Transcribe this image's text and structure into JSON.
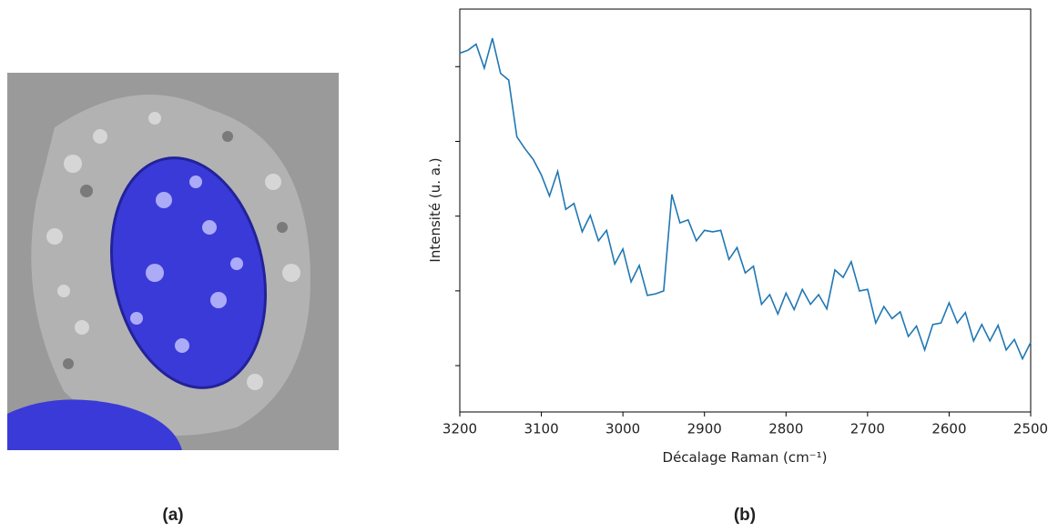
{
  "figure": {
    "labels": [
      "(a)",
      "(b)"
    ]
  },
  "chart_data": {
    "type": "line",
    "xlabel": "Décalage Raman (cm⁻¹)",
    "ylabel": "Intensité (u. a.)",
    "x": [
      3200,
      3190,
      3180,
      3170,
      3160,
      3150,
      3140,
      3130,
      3120,
      3110,
      3100,
      3090,
      3080,
      3070,
      3060,
      3050,
      3040,
      3030,
      3020,
      3010,
      3000,
      2990,
      2980,
      2970,
      2960,
      2950,
      2940,
      2930,
      2920,
      2910,
      2900,
      2890,
      2880,
      2870,
      2860,
      2850,
      2840,
      2830,
      2820,
      2810,
      2800,
      2790,
      2780,
      2770,
      2760,
      2750,
      2740,
      2730,
      2720,
      2710,
      2700,
      2690,
      2680,
      2670,
      2660,
      2650,
      2640,
      2630,
      2620,
      2610,
      2600,
      2590,
      2580,
      2570,
      2560,
      2550,
      2540,
      2530,
      2520,
      2510,
      2500
    ],
    "series": [
      {
        "color": "#1f77b4",
        "values": [
          5.18,
          5.22,
          5.3,
          4.98,
          5.38,
          4.91,
          4.82,
          4.06,
          3.9,
          3.76,
          3.55,
          3.27,
          3.6,
          3.09,
          3.17,
          2.79,
          3.01,
          2.67,
          2.81,
          2.36,
          2.56,
          2.12,
          2.34,
          1.94,
          1.96,
          2.0,
          3.29,
          2.91,
          2.95,
          2.67,
          2.81,
          2.79,
          2.81,
          2.42,
          2.58,
          2.24,
          2.33,
          1.82,
          1.95,
          1.69,
          1.97,
          1.75,
          2.02,
          1.82,
          1.95,
          1.76,
          2.28,
          2.18,
          2.39,
          2.0,
          2.02,
          1.57,
          1.79,
          1.63,
          1.72,
          1.39,
          1.53,
          1.21,
          1.55,
          1.57,
          1.84,
          1.57,
          1.71,
          1.33,
          1.55,
          1.33,
          1.54,
          1.21,
          1.35,
          1.09,
          1.31
        ]
      }
    ],
    "xlim": [
      3200,
      2500
    ],
    "xticks": [
      3200,
      3100,
      3000,
      2900,
      2800,
      2700,
      2600,
      2500
    ],
    "ylim": [
      0.38,
      5.77
    ],
    "yticks": [
      1,
      2,
      3,
      4,
      5
    ],
    "ytick_labels": false
  }
}
